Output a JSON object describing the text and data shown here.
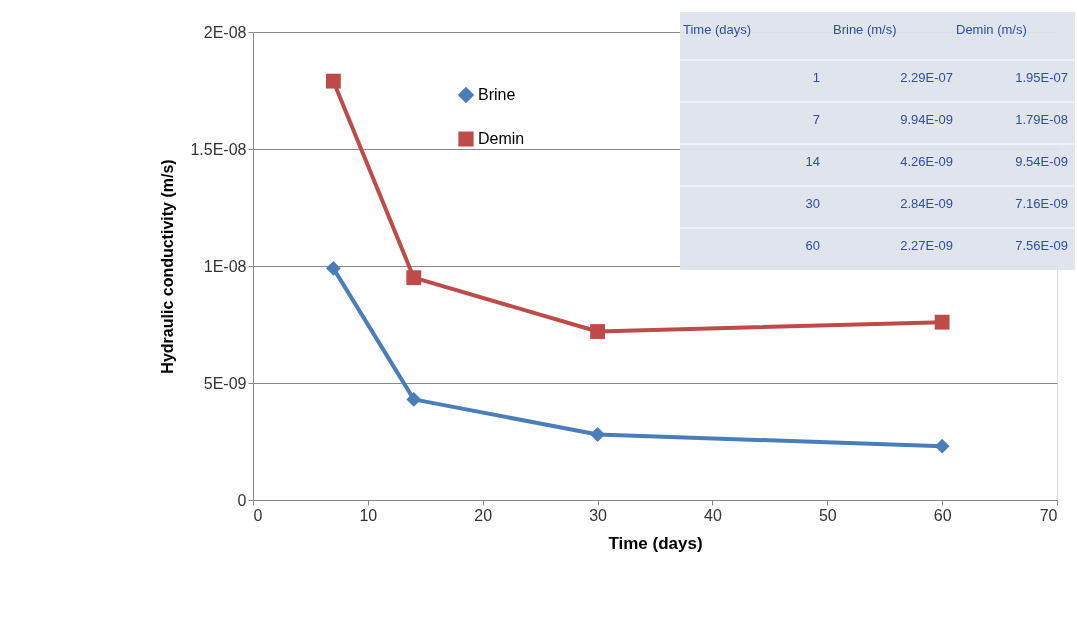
{
  "chart_data": {
    "type": "line",
    "xlabel": "Time (days)",
    "ylabel": "Hydraulic conductivity  (m/s)",
    "x": [
      7,
      14,
      30,
      60
    ],
    "series": [
      {
        "name": "Brine",
        "color": "#4a7ebb",
        "marker": "diamond",
        "values": [
          9.9e-09,
          4.3e-09,
          2.8e-09,
          2.3e-09
        ]
      },
      {
        "name": "Demin",
        "color": "#be4b48",
        "marker": "square",
        "values": [
          1.79e-08,
          9.5e-09,
          7.2e-09,
          7.6e-09
        ]
      }
    ],
    "xlim": [
      0,
      70
    ],
    "xticks": [
      0,
      10,
      20,
      30,
      40,
      50,
      60,
      70
    ],
    "ylim": [
      0,
      2e-08
    ],
    "yticks": [
      0,
      {
        "value": 5e-09,
        "label": "5E-09"
      },
      {
        "value": 1e-08,
        "label": "1E-08"
      },
      {
        "value": 1.5e-08,
        "label": "1.5E-08"
      },
      {
        "value": 2e-08,
        "label": "2E-08"
      }
    ],
    "grid": "y",
    "legend": "top",
    "line_style": "solid",
    "annotations": [
      "Time (days)",
      "Brine (m/s)",
      "Demin (m/s)",
      "1",
      "2.29E-07",
      "1.95E-07",
      "7",
      "9.94E-09",
      "1.79E-08",
      "14",
      "4.26E-09",
      "9.54E-09",
      "30",
      "2.84E-09",
      "7.16E-09",
      "60",
      "2.27E-09",
      "7.56E-09"
    ]
  }
}
